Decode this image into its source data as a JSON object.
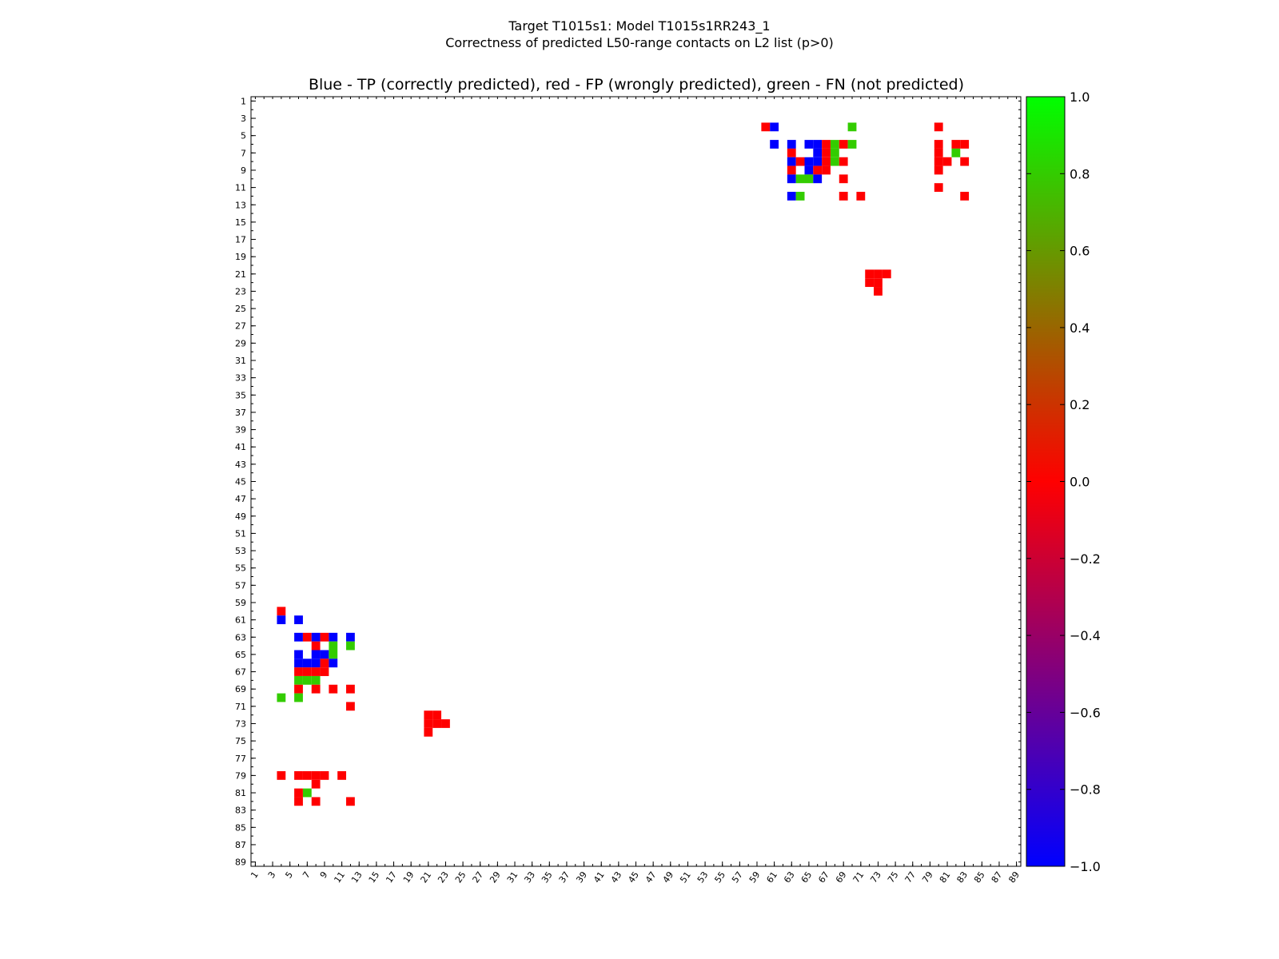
{
  "chart_data": {
    "type": "heatmap",
    "title_line1": "Target T1015s1: Model T1015s1RR243_1",
    "title_line2": "Correctness of predicted L50-range contacts on L2 list (p>0)",
    "subtitle": "Blue - TP (correctly predicted), red - FP (wrongly predicted), green - FN (not predicted)",
    "xlabel": "",
    "ylabel": "",
    "xlim": [
      1,
      89
    ],
    "ylim": [
      1,
      89
    ],
    "x_tick_labels": [
      "1",
      "3",
      "5",
      "7",
      "9",
      "11",
      "13",
      "15",
      "17",
      "19",
      "21",
      "23",
      "25",
      "27",
      "29",
      "31",
      "33",
      "35",
      "37",
      "39",
      "41",
      "43",
      "45",
      "47",
      "49",
      "51",
      "53",
      "55",
      "57",
      "59",
      "61",
      "63",
      "65",
      "67",
      "69",
      "71",
      "73",
      "75",
      "77",
      "79",
      "81",
      "83",
      "85",
      "87",
      "89"
    ],
    "y_tick_labels": [
      "1",
      "3",
      "5",
      "7",
      "9",
      "11",
      "13",
      "15",
      "17",
      "19",
      "21",
      "23",
      "25",
      "27",
      "29",
      "31",
      "33",
      "35",
      "37",
      "39",
      "41",
      "43",
      "45",
      "47",
      "49",
      "51",
      "53",
      "55",
      "57",
      "59",
      "61",
      "63",
      "65",
      "67",
      "69",
      "71",
      "73",
      "75",
      "77",
      "79",
      "81",
      "83",
      "85",
      "87",
      "89"
    ],
    "colorbar": {
      "min": -1.0,
      "max": 1.0,
      "tick_labels": [
        "1.0",
        "0.8",
        "0.6",
        "0.4",
        "0.2",
        "0.0",
        "−0.2",
        "−0.4",
        "−0.6",
        "−0.8",
        "−1.0"
      ]
    },
    "legend": {
      "tp": "blue",
      "fp": "red",
      "fn": "green"
    },
    "colors": {
      "tp": "#0000ff",
      "fp": "#ff0000",
      "fn": "#33cc00"
    },
    "cells": [
      [
        60,
        4,
        "fp"
      ],
      [
        61,
        4,
        "tp"
      ],
      [
        70,
        4,
        "fn"
      ],
      [
        80,
        4,
        "fp"
      ],
      [
        61,
        6,
        "tp"
      ],
      [
        63,
        6,
        "tp"
      ],
      [
        65,
        6,
        "tp"
      ],
      [
        66,
        6,
        "tp"
      ],
      [
        67,
        6,
        "fp"
      ],
      [
        68,
        6,
        "fn"
      ],
      [
        69,
        6,
        "fp"
      ],
      [
        70,
        6,
        "fn"
      ],
      [
        80,
        6,
        "fp"
      ],
      [
        82,
        6,
        "fp"
      ],
      [
        83,
        6,
        "fp"
      ],
      [
        63,
        7,
        "fp"
      ],
      [
        66,
        7,
        "tp"
      ],
      [
        67,
        7,
        "fp"
      ],
      [
        68,
        7,
        "fn"
      ],
      [
        80,
        7,
        "fp"
      ],
      [
        82,
        7,
        "fn"
      ],
      [
        63,
        8,
        "tp"
      ],
      [
        64,
        8,
        "fp"
      ],
      [
        65,
        8,
        "tp"
      ],
      [
        66,
        8,
        "tp"
      ],
      [
        67,
        8,
        "fp"
      ],
      [
        68,
        8,
        "fn"
      ],
      [
        69,
        8,
        "fp"
      ],
      [
        80,
        8,
        "fp"
      ],
      [
        81,
        8,
        "fp"
      ],
      [
        83,
        8,
        "fp"
      ],
      [
        63,
        9,
        "fp"
      ],
      [
        65,
        9,
        "tp"
      ],
      [
        66,
        9,
        "fp"
      ],
      [
        67,
        9,
        "fp"
      ],
      [
        80,
        9,
        "fp"
      ],
      [
        63,
        10,
        "tp"
      ],
      [
        64,
        10,
        "fn"
      ],
      [
        65,
        10,
        "fn"
      ],
      [
        66,
        10,
        "tp"
      ],
      [
        69,
        10,
        "fp"
      ],
      [
        80,
        11,
        "fp"
      ],
      [
        63,
        12,
        "tp"
      ],
      [
        64,
        12,
        "fn"
      ],
      [
        69,
        12,
        "fp"
      ],
      [
        71,
        12,
        "fp"
      ],
      [
        83,
        12,
        "fp"
      ],
      [
        72,
        21,
        "fp"
      ],
      [
        73,
        21,
        "fp"
      ],
      [
        74,
        21,
        "fp"
      ],
      [
        72,
        22,
        "fp"
      ],
      [
        73,
        22,
        "fp"
      ],
      [
        73,
        23,
        "fp"
      ],
      [
        4,
        60,
        "fp"
      ],
      [
        4,
        61,
        "tp"
      ],
      [
        6,
        61,
        "tp"
      ],
      [
        6,
        63,
        "tp"
      ],
      [
        7,
        63,
        "fp"
      ],
      [
        8,
        63,
        "tp"
      ],
      [
        9,
        63,
        "fp"
      ],
      [
        10,
        63,
        "tp"
      ],
      [
        12,
        63,
        "tp"
      ],
      [
        8,
        64,
        "fp"
      ],
      [
        10,
        64,
        "fn"
      ],
      [
        12,
        64,
        "fn"
      ],
      [
        6,
        65,
        "tp"
      ],
      [
        8,
        65,
        "tp"
      ],
      [
        9,
        65,
        "tp"
      ],
      [
        10,
        65,
        "fn"
      ],
      [
        6,
        66,
        "tp"
      ],
      [
        7,
        66,
        "tp"
      ],
      [
        8,
        66,
        "tp"
      ],
      [
        9,
        66,
        "fp"
      ],
      [
        10,
        66,
        "tp"
      ],
      [
        6,
        67,
        "fp"
      ],
      [
        7,
        67,
        "fp"
      ],
      [
        8,
        67,
        "fp"
      ],
      [
        9,
        67,
        "fp"
      ],
      [
        6,
        68,
        "fn"
      ],
      [
        7,
        68,
        "fn"
      ],
      [
        8,
        68,
        "fn"
      ],
      [
        6,
        69,
        "fp"
      ],
      [
        8,
        69,
        "fp"
      ],
      [
        10,
        69,
        "fp"
      ],
      [
        12,
        69,
        "fp"
      ],
      [
        4,
        70,
        "fn"
      ],
      [
        6,
        70,
        "fn"
      ],
      [
        12,
        71,
        "fp"
      ],
      [
        21,
        72,
        "fp"
      ],
      [
        22,
        72,
        "fp"
      ],
      [
        21,
        73,
        "fp"
      ],
      [
        22,
        73,
        "fp"
      ],
      [
        23,
        73,
        "fp"
      ],
      [
        21,
        74,
        "fp"
      ],
      [
        4,
        79,
        "fp"
      ],
      [
        6,
        79,
        "fp"
      ],
      [
        7,
        79,
        "fp"
      ],
      [
        8,
        79,
        "fp"
      ],
      [
        9,
        79,
        "fp"
      ],
      [
        11,
        79,
        "fp"
      ],
      [
        8,
        80,
        "fp"
      ],
      [
        6,
        81,
        "fp"
      ],
      [
        7,
        81,
        "fn"
      ],
      [
        6,
        82,
        "fp"
      ],
      [
        8,
        82,
        "fp"
      ],
      [
        12,
        82,
        "fp"
      ]
    ]
  }
}
